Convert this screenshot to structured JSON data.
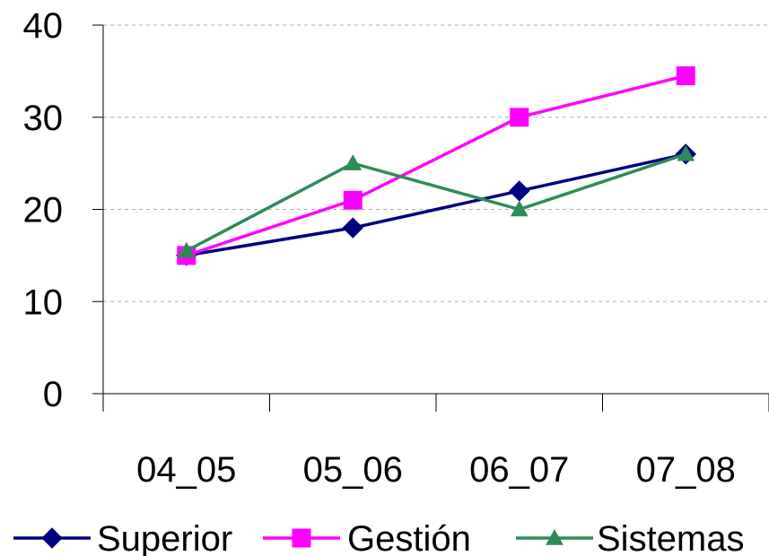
{
  "chart_data": {
    "type": "line",
    "categories": [
      "04_05",
      "05_06",
      "06_07",
      "07_08"
    ],
    "ylim": [
      0,
      40
    ],
    "yticks": [
      0,
      10,
      20,
      30,
      40
    ],
    "grid": "horizontal-dashed",
    "legend": "bottom",
    "series": [
      {
        "name": "Superior",
        "values": [
          15,
          18,
          22,
          26
        ],
        "color": "#000080",
        "marker": "diamond"
      },
      {
        "name": "Gestión",
        "values": [
          15,
          21,
          30,
          34.5
        ],
        "color": "#ff00ff",
        "marker": "square"
      },
      {
        "name": "Sistemas",
        "values": [
          15.5,
          25,
          20,
          26
        ],
        "color": "#2e8b57",
        "marker": "triangle"
      }
    ]
  }
}
